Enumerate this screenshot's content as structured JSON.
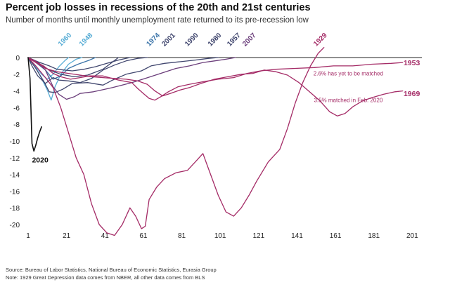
{
  "title": "Percent job losses in recessions of the 20th and 21st centuries",
  "subtitle": "Number of months until monthly unemployment rate returned to its pre-recession low",
  "footer": {
    "source": "Source: Bureau of Labor Statistics, National Bureau of Economic Statistics, Eurasia Group",
    "note": "Note: 1929 Great Depression data comes from NBER, all other data comes from BLS"
  },
  "chart_data": {
    "type": "line",
    "title": "Percent job losses in recessions of the 20th and 21st centuries",
    "subtitle": "Number of months until monthly unemployment rate returned to its pre-recession low",
    "xlabel": "",
    "ylabel": "",
    "xlim": [
      1,
      206
    ],
    "ylim": [
      -20,
      0
    ],
    "x_ticks": [
      1,
      21,
      41,
      61,
      81,
      101,
      121,
      141,
      161,
      181,
      201
    ],
    "y_ticks": [
      0,
      -2,
      -4,
      -6,
      -8,
      -10,
      -12,
      -14,
      -16,
      -18,
      -20
    ],
    "grid": false,
    "colors": {
      "light_blue": "#5aaed6",
      "blue": "#3a73a8",
      "navy": "#40466e",
      "purple": "#6a3d7a",
      "magenta": "#a42b66",
      "black": "#111111",
      "axis": "#222222"
    },
    "series": [
      {
        "name": "1960",
        "color": "#5aaed6",
        "label_pos": [
          18,
          1.3
        ],
        "points": [
          [
            1,
            0
          ],
          [
            4,
            -0.8
          ],
          [
            8,
            -2.0
          ],
          [
            11,
            -2.6
          ],
          [
            14,
            -2.0
          ],
          [
            17,
            -1.1
          ],
          [
            20,
            -0.4
          ],
          [
            22,
            0
          ]
        ]
      },
      {
        "name": "1948",
        "color": "#5aaed6",
        "label_pos": [
          29,
          1.3
        ],
        "points": [
          [
            1,
            0
          ],
          [
            4,
            -0.8
          ],
          [
            8,
            -2.5
          ],
          [
            11,
            -3.9
          ],
          [
            13,
            -5.1
          ],
          [
            15,
            -3.5
          ],
          [
            18,
            -2.0
          ],
          [
            22,
            -0.8
          ],
          [
            26,
            -0.2
          ],
          [
            29,
            0
          ]
        ]
      },
      {
        "name": "1974",
        "color": "#3a73a8",
        "label_pos": [
          64,
          1.3
        ],
        "points": [
          [
            1,
            0
          ],
          [
            5,
            -0.6
          ],
          [
            10,
            -1.5
          ],
          [
            14,
            -2.6
          ],
          [
            18,
            -2.2
          ],
          [
            22,
            -1.3
          ],
          [
            27,
            -0.8
          ],
          [
            33,
            -0.3
          ],
          [
            36,
            0
          ]
        ]
      },
      {
        "name": "2001",
        "color": "#40466e",
        "label_pos": [
          72,
          1.3
        ],
        "points": [
          [
            1,
            0
          ],
          [
            6,
            -0.6
          ],
          [
            12,
            -1.5
          ],
          [
            18,
            -2.0
          ],
          [
            25,
            -2.3
          ],
          [
            32,
            -2.1
          ],
          [
            40,
            -1.4
          ],
          [
            48,
            0
          ]
        ]
      },
      {
        "name": "1990",
        "color": "#40466e",
        "label_pos": [
          84,
          1.3
        ],
        "points": [
          [
            1,
            0
          ],
          [
            6,
            -0.5
          ],
          [
            12,
            -1.0
          ],
          [
            16,
            -1.4
          ],
          [
            24,
            -1.6
          ],
          [
            30,
            -1.4
          ],
          [
            36,
            -1.1
          ],
          [
            42,
            -0.7
          ],
          [
            48,
            -0.3
          ],
          [
            54,
            0
          ]
        ]
      },
      {
        "name": "1980",
        "color": "#40466e",
        "label_pos": [
          96,
          1.3
        ],
        "points": [
          [
            1,
            0
          ],
          [
            3,
            -1.0
          ],
          [
            6,
            -2.2
          ],
          [
            10,
            -3.1
          ],
          [
            14,
            -2.4
          ],
          [
            17,
            -2.7
          ],
          [
            22,
            -2.8
          ],
          [
            28,
            -3.0
          ],
          [
            34,
            -2.5
          ],
          [
            40,
            -1.5
          ],
          [
            46,
            -0.9
          ],
          [
            52,
            -0.4
          ],
          [
            58,
            -0.1
          ],
          [
            63,
            0
          ]
        ]
      },
      {
        "name": "1957",
        "color": "#40466e",
        "label_pos": [
          106,
          1.3
        ],
        "points": [
          [
            1,
            0
          ],
          [
            5,
            -1.3
          ],
          [
            9,
            -2.8
          ],
          [
            12,
            -4.1
          ],
          [
            15,
            -4.2
          ],
          [
            19,
            -3.8
          ],
          [
            24,
            -3.1
          ],
          [
            32,
            -3.0
          ],
          [
            40,
            -3.3
          ],
          [
            45,
            -2.7
          ],
          [
            52,
            -2.0
          ],
          [
            60,
            -1.6
          ],
          [
            65,
            -1.0
          ],
          [
            72,
            -0.7
          ],
          [
            80,
            -0.5
          ],
          [
            88,
            -0.3
          ],
          [
            95,
            -0.1
          ],
          [
            100,
            0
          ]
        ]
      },
      {
        "name": "2007",
        "color": "#6a3d7a",
        "label_pos": [
          114,
          1.3
        ],
        "points": [
          [
            1,
            0
          ],
          [
            5,
            -0.4
          ],
          [
            10,
            -1.5
          ],
          [
            14,
            -3.5
          ],
          [
            17,
            -4.4
          ],
          [
            21,
            -5.0
          ],
          [
            25,
            -4.7
          ],
          [
            28,
            -4.3
          ],
          [
            35,
            -4.1
          ],
          [
            45,
            -3.6
          ],
          [
            55,
            -3.0
          ],
          [
            62,
            -2.5
          ],
          [
            70,
            -1.9
          ],
          [
            78,
            -1.3
          ],
          [
            85,
            -1.0
          ],
          [
            92,
            -0.6
          ],
          [
            98,
            -0.4
          ],
          [
            104,
            -0.2
          ],
          [
            109,
            0
          ]
        ]
      },
      {
        "name": "1953",
        "color": "#a42b66",
        "label_pos": [
          195,
          -0.6
        ],
        "points": [
          [
            1,
            0
          ],
          [
            5,
            -0.5
          ],
          [
            9,
            -1.0
          ],
          [
            14,
            -1.9
          ],
          [
            18,
            -2.3
          ],
          [
            23,
            -2.6
          ],
          [
            28,
            -2.4
          ],
          [
            33,
            -2.2
          ],
          [
            40,
            -2.2
          ],
          [
            48,
            -2.7
          ],
          [
            55,
            -3.0
          ],
          [
            58,
            -3.7
          ],
          [
            61,
            -4.3
          ],
          [
            64,
            -4.9
          ],
          [
            67,
            -5.1
          ],
          [
            70,
            -4.7
          ],
          [
            74,
            -4.1
          ],
          [
            79,
            -3.5
          ],
          [
            85,
            -3.2
          ],
          [
            92,
            -2.9
          ],
          [
            100,
            -2.6
          ],
          [
            108,
            -2.4
          ],
          [
            115,
            -1.9
          ],
          [
            122,
            -1.6
          ],
          [
            130,
            -1.4
          ],
          [
            140,
            -1.3
          ],
          [
            150,
            -1.2
          ],
          [
            160,
            -1.0
          ],
          [
            170,
            -1.0
          ],
          [
            180,
            -0.8
          ],
          [
            190,
            -0.7
          ],
          [
            196,
            -0.6
          ]
        ]
      },
      {
        "name": "1969",
        "color": "#a42b66",
        "label_pos": [
          195,
          -4.3
        ],
        "points": [
          [
            1,
            0
          ],
          [
            5,
            -0.6
          ],
          [
            10,
            -1.3
          ],
          [
            16,
            -1.7
          ],
          [
            22,
            -1.9
          ],
          [
            28,
            -2.1
          ],
          [
            34,
            -2.3
          ],
          [
            40,
            -2.4
          ],
          [
            46,
            -2.5
          ],
          [
            52,
            -2.6
          ],
          [
            58,
            -2.8
          ],
          [
            63,
            -3.2
          ],
          [
            67,
            -4.0
          ],
          [
            71,
            -4.6
          ],
          [
            75,
            -4.3
          ],
          [
            80,
            -3.9
          ],
          [
            85,
            -3.6
          ],
          [
            91,
            -3.1
          ],
          [
            98,
            -2.6
          ],
          [
            105,
            -2.3
          ],
          [
            112,
            -2.0
          ],
          [
            118,
            -1.9
          ],
          [
            124,
            -1.5
          ],
          [
            130,
            -1.7
          ],
          [
            136,
            -2.1
          ],
          [
            142,
            -3.0
          ],
          [
            148,
            -4.2
          ],
          [
            153,
            -5.2
          ],
          [
            158,
            -6.5
          ],
          [
            162,
            -7.0
          ],
          [
            166,
            -6.7
          ],
          [
            170,
            -5.9
          ],
          [
            175,
            -5.2
          ],
          [
            180,
            -4.8
          ],
          [
            186,
            -4.4
          ],
          [
            192,
            -4.1
          ],
          [
            196,
            -4.0
          ]
        ]
      },
      {
        "name": "1929",
        "color": "#a42b66",
        "label_pos": [
          151,
          1.3
        ],
        "points": [
          [
            1,
            0
          ],
          [
            5,
            -1.0
          ],
          [
            10,
            -2.4
          ],
          [
            14,
            -3.6
          ],
          [
            18,
            -6.0
          ],
          [
            22,
            -9.0
          ],
          [
            26,
            -12.0
          ],
          [
            30,
            -14.0
          ],
          [
            34,
            -17.5
          ],
          [
            38,
            -20.0
          ],
          [
            42,
            -21.0
          ],
          [
            46,
            -21.3
          ],
          [
            50,
            -20.0
          ],
          [
            54,
            -18.0
          ],
          [
            57,
            -19.0
          ],
          [
            60,
            -20.5
          ],
          [
            62,
            -20.2
          ],
          [
            64,
            -17.0
          ],
          [
            68,
            -15.5
          ],
          [
            72,
            -14.5
          ],
          [
            78,
            -13.8
          ],
          [
            84,
            -13.5
          ],
          [
            88,
            -12.5
          ],
          [
            92,
            -11.5
          ],
          [
            96,
            -14.0
          ],
          [
            100,
            -16.5
          ],
          [
            104,
            -18.5
          ],
          [
            108,
            -19.0
          ],
          [
            112,
            -18.0
          ],
          [
            116,
            -16.5
          ],
          [
            120,
            -14.8
          ],
          [
            126,
            -12.5
          ],
          [
            132,
            -11.0
          ],
          [
            136,
            -8.5
          ],
          [
            140,
            -5.5
          ],
          [
            144,
            -3.0
          ],
          [
            148,
            -1.0
          ],
          [
            152,
            0.5
          ],
          [
            155,
            1.2
          ]
        ]
      },
      {
        "name": "2020",
        "color": "#111111",
        "label_pos": [
          3,
          -11.2
        ],
        "points": [
          [
            1,
            0
          ],
          [
            2,
            -2.5
          ],
          [
            3,
            -10.3
          ],
          [
            4,
            -11.2
          ],
          [
            5,
            -10.5
          ],
          [
            6,
            -9.6
          ],
          [
            7,
            -8.9
          ],
          [
            8,
            -8.3
          ]
        ]
      }
    ],
    "annotations": [
      {
        "text": "2.6% has yet to be matched",
        "series": "1953",
        "pos": [
          186,
          -1.9
        ]
      },
      {
        "text": "3.5% matched in Feb. 2020",
        "series": "1969",
        "pos": [
          186,
          -5.1
        ]
      }
    ]
  }
}
